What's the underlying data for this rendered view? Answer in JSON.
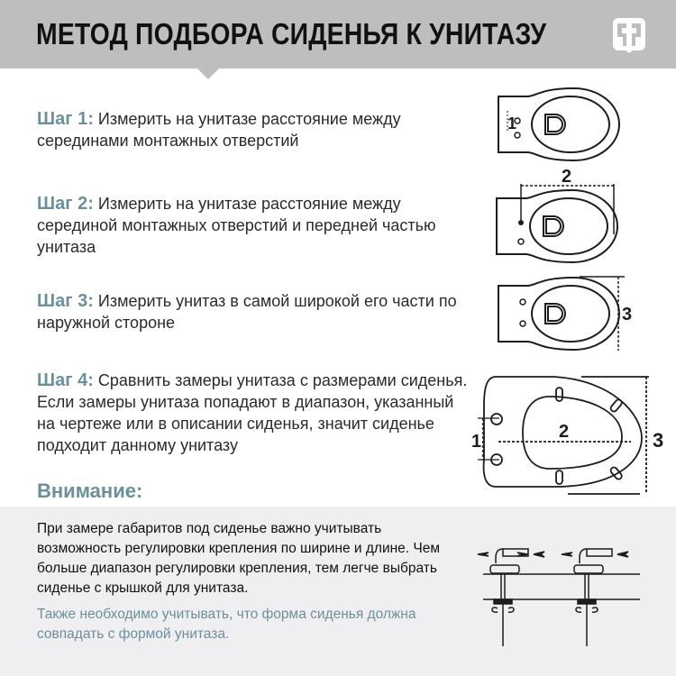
{
  "header": {
    "title": "МЕТОД ПОДБОРА СИДЕНЬЯ К УНИТАЗУ",
    "logo": "brand-logo",
    "background": "#bdbec0"
  },
  "accent_color": "#6b909c",
  "steps": [
    {
      "label": "Шаг 1:",
      "text": "Измерить на унитазе расстояние между серединами монтажных отверстий",
      "dimension": "1"
    },
    {
      "label": "Шаг 2:",
      "text": "Измерить на унитазе расстояние между серединой монтажных отверстий и передней частью унитаза",
      "dimension": "2"
    },
    {
      "label": "Шаг 3:",
      "text": "Измерить унитаз в самой широкой его части по наружной стороне",
      "dimension": "3"
    },
    {
      "label": "Шаг 4:",
      "text": "Сравнить замеры унитаза с размерами сиденья. Если замеры унитаза попадают в диапазон, указанный на чертеже или в описании сиденья, значит сиденье подходит данному унитазу",
      "dimensions": [
        "1",
        "2",
        "3"
      ]
    }
  ],
  "attention": {
    "title": "Внимание:",
    "body": "При замере габаритов под сиденье важно учитывать возможность регулировки крепления по ширине и длине. Чем больше диапазон регулировки крепления,  тем легче выбрать сиденье с крышкой для унитаза.",
    "note": "Также необходимо учитывать, что форма сиденья должна совпадать с формой унитаза."
  }
}
